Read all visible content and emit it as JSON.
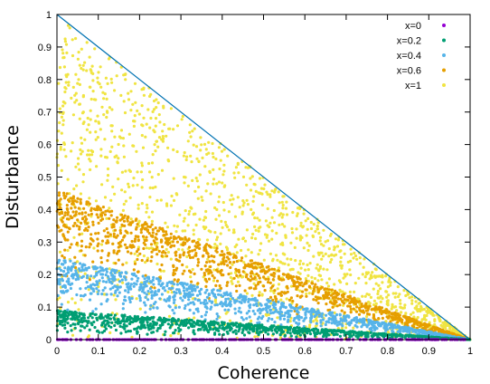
{
  "chart_data": {
    "type": "scatter",
    "xlabel": "Coherence",
    "ylabel": "Disturbance",
    "xlim": [
      0,
      1
    ],
    "ylim": [
      0,
      1
    ],
    "xticks": [
      "0",
      "0.1",
      "0.2",
      "0.3",
      "0.4",
      "0.5",
      "0.6",
      "0.7",
      "0.8",
      "0.9",
      "1"
    ],
    "yticks": [
      "0",
      "0.1",
      "0.2",
      "0.3",
      "0.4",
      "0.5",
      "0.6",
      "0.7",
      "0.8",
      "0.9",
      "1"
    ],
    "grid": false,
    "legend_position": "top-right",
    "reference_line": {
      "x": [
        0,
        1
      ],
      "y": [
        1,
        0
      ],
      "color": "#0072b2"
    },
    "series": [
      {
        "name": "x=0",
        "color": "#9400d3",
        "disturbance_max_at_zero_coherence": 0.0
      },
      {
        "name": "x=0.2",
        "color": "#009e73",
        "disturbance_max_at_zero_coherence": 0.09
      },
      {
        "name": "x=0.4",
        "color": "#56b4e9",
        "disturbance_max_at_zero_coherence": 0.25
      },
      {
        "name": "x=0.6",
        "color": "#e69f00",
        "disturbance_max_at_zero_coherence": 0.46
      },
      {
        "name": "x=1",
        "color": "#f0e442",
        "disturbance_max_at_zero_coherence": 1.0
      }
    ]
  }
}
